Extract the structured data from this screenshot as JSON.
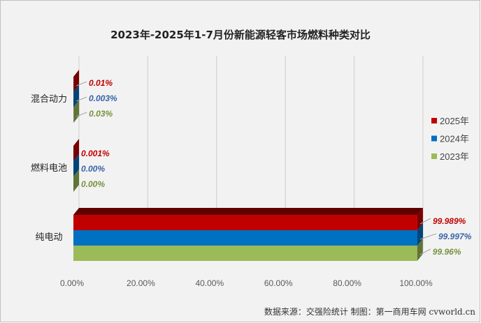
{
  "chart_data": {
    "type": "bar",
    "orientation": "horizontal",
    "style": "3d-stacked-clustered",
    "title": "2023年-2025年1-7月份新能源轻客市场燃料种类对比",
    "categories": [
      "混合动力",
      "燃料电池",
      "纯电动"
    ],
    "series": [
      {
        "name": "2025年",
        "color": "#C00000",
        "values": [
          0.01,
          0.001,
          99.989
        ],
        "labels": [
          "0.01%",
          "0.001%",
          "99.989%"
        ],
        "label_color": "#C00000"
      },
      {
        "name": "2024年",
        "color": "#0070C0",
        "values": [
          0.003,
          0.0,
          99.997
        ],
        "labels": [
          "0.003%",
          "0.00%",
          "99.997%"
        ],
        "label_color": "#3A64A8"
      },
      {
        "name": "2023年",
        "color": "#9BBB59",
        "values": [
          0.03,
          0.0,
          99.96
        ],
        "labels": [
          "0.03%",
          "0.00%",
          "99.96%"
        ],
        "label_color": "#76923C"
      }
    ],
    "xlim": [
      0,
      100
    ],
    "xticks": [
      "0.00%",
      "20.00%",
      "40.00%",
      "60.00%",
      "80.00%",
      "100.00%"
    ],
    "grid": true,
    "legend_position": "right",
    "source": "数据来源：交强险统计  制图：第一商用车网 cvworld.cn"
  }
}
